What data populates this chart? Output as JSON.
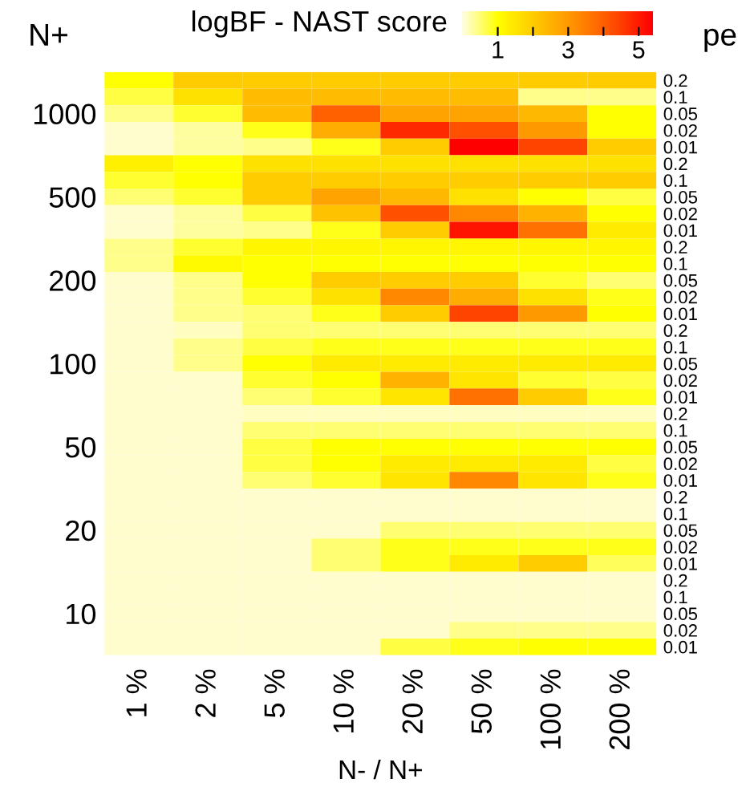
{
  "chart_data": {
    "type": "heatmap",
    "clabel": "logBF - NAST score",
    "xlabel": "N- / N+",
    "ylabel": "N+",
    "y2label": "pe",
    "categories": [
      "1 %",
      "2 %",
      "5 %",
      "10 %",
      "20 %",
      "50 %",
      "100 %",
      "200 %"
    ],
    "y_categories": [
      null,
      null,
      "1000",
      null,
      null,
      null,
      null,
      "500",
      null,
      null,
      null,
      null,
      "200",
      null,
      null,
      null,
      null,
      "100",
      null,
      null,
      null,
      null,
      "50",
      null,
      null,
      null,
      null,
      "20",
      null,
      null,
      null,
      null,
      "10",
      null,
      null
    ],
    "y2_categories": [
      "0.2",
      "0.1",
      "0.05",
      "0.02",
      "0.01",
      "0.2",
      "0.1",
      "0.05",
      "0.02",
      "0.01",
      "0.2",
      "0.1",
      "0.05",
      "0.02",
      "0.01",
      "0.2",
      "0.1",
      "0.05",
      "0.02",
      "0.01",
      "0.2",
      "0.1",
      "0.05",
      "0.02",
      "0.01",
      "0.2",
      "0.1",
      "0.05",
      "0.02",
      "0.01",
      "0.2",
      "0.1",
      "0.05",
      "0.02",
      "0.01"
    ],
    "cells": [
      [
        1.0,
        2.0,
        2.0,
        2.0,
        2.0,
        2.0,
        2.0,
        2.0
      ],
      [
        0.7,
        1.6,
        2.3,
        2.3,
        2.3,
        2.3,
        0.4,
        0.4
      ],
      [
        0.4,
        0.8,
        2.3,
        4.0,
        2.8,
        2.8,
        2.4,
        1.0
      ],
      [
        0.1,
        0.3,
        0.9,
        2.6,
        4.8,
        4.2,
        3.0,
        1.0
      ],
      [
        0.1,
        0.3,
        0.4,
        0.9,
        2.0,
        5.4,
        4.4,
        2.0
      ],
      [
        1.3,
        1.0,
        1.6,
        1.6,
        1.6,
        1.6,
        1.6,
        1.6
      ],
      [
        0.8,
        1.0,
        2.0,
        2.0,
        2.0,
        2.0,
        2.0,
        2.0
      ],
      [
        0.5,
        0.8,
        2.0,
        2.8,
        2.4,
        1.6,
        1.0,
        0.7
      ],
      [
        0.1,
        0.3,
        0.7,
        2.2,
        4.2,
        3.3,
        2.5,
        1.0
      ],
      [
        0.1,
        0.3,
        0.4,
        0.9,
        2.0,
        5.1,
        3.7,
        1.4
      ],
      [
        0.4,
        0.8,
        1.2,
        1.2,
        1.2,
        1.2,
        1.2,
        1.2
      ],
      [
        0.4,
        1.1,
        1.0,
        1.0,
        1.0,
        1.0,
        1.0,
        1.0
      ],
      [
        0.1,
        0.4,
        1.0,
        2.0,
        2.0,
        2.0,
        0.8,
        0.5
      ],
      [
        0.1,
        0.4,
        0.8,
        1.6,
        3.3,
        2.6,
        1.6,
        0.9
      ],
      [
        0.1,
        0.4,
        0.5,
        0.9,
        2.0,
        4.4,
        3.0,
        1.0
      ],
      [
        0.1,
        0.15,
        0.5,
        0.5,
        0.5,
        0.5,
        0.5,
        0.5
      ],
      [
        0.1,
        0.4,
        0.7,
        0.9,
        0.9,
        0.9,
        0.9,
        0.9
      ],
      [
        0.1,
        0.4,
        1.0,
        1.4,
        1.4,
        1.4,
        1.4,
        1.4
      ],
      [
        0.1,
        0.1,
        0.8,
        1.0,
        2.5,
        1.5,
        0.8,
        0.7
      ],
      [
        0.1,
        0.1,
        0.5,
        0.8,
        1.5,
        3.7,
        2.0,
        0.9
      ],
      [
        0.1,
        0.1,
        0.15,
        0.15,
        0.15,
        0.15,
        0.15,
        0.15
      ],
      [
        0.1,
        0.1,
        0.5,
        0.5,
        0.5,
        0.5,
        0.5,
        0.5
      ],
      [
        0.1,
        0.1,
        0.7,
        1.0,
        1.0,
        1.0,
        1.0,
        1.0
      ],
      [
        0.1,
        0.1,
        0.7,
        1.0,
        1.4,
        1.4,
        1.4,
        0.7
      ],
      [
        0.1,
        0.1,
        0.5,
        0.8,
        1.5,
        3.3,
        1.5,
        0.9
      ],
      [
        0.1,
        0.1,
        0.1,
        0.1,
        0.1,
        0.1,
        0.1,
        0.1
      ],
      [
        0.1,
        0.1,
        0.1,
        0.1,
        0.1,
        0.1,
        0.1,
        0.1
      ],
      [
        0.1,
        0.1,
        0.1,
        0.1,
        0.5,
        0.5,
        0.5,
        0.5
      ],
      [
        0.1,
        0.1,
        0.1,
        0.5,
        0.9,
        0.9,
        0.9,
        0.9
      ],
      [
        0.1,
        0.1,
        0.1,
        0.5,
        0.9,
        1.4,
        2.0,
        0.6
      ],
      [
        0.1,
        0.1,
        0.1,
        0.1,
        0.1,
        0.1,
        0.1,
        0.1
      ],
      [
        0.1,
        0.1,
        0.1,
        0.1,
        0.1,
        0.1,
        0.1,
        0.1
      ],
      [
        0.1,
        0.1,
        0.1,
        0.1,
        0.1,
        0.1,
        0.1,
        0.1
      ],
      [
        0.1,
        0.1,
        0.1,
        0.1,
        0.1,
        0.4,
        0.4,
        0.4
      ],
      [
        0.1,
        0.1,
        0.1,
        0.1,
        0.7,
        0.9,
        1.0,
        1.0
      ]
    ],
    "clim": [
      0,
      5.4
    ],
    "cticks": [
      1,
      {
        "value": 2,
        "label": null
      },
      3,
      {
        "value": 4,
        "label": null
      },
      5
    ]
  }
}
